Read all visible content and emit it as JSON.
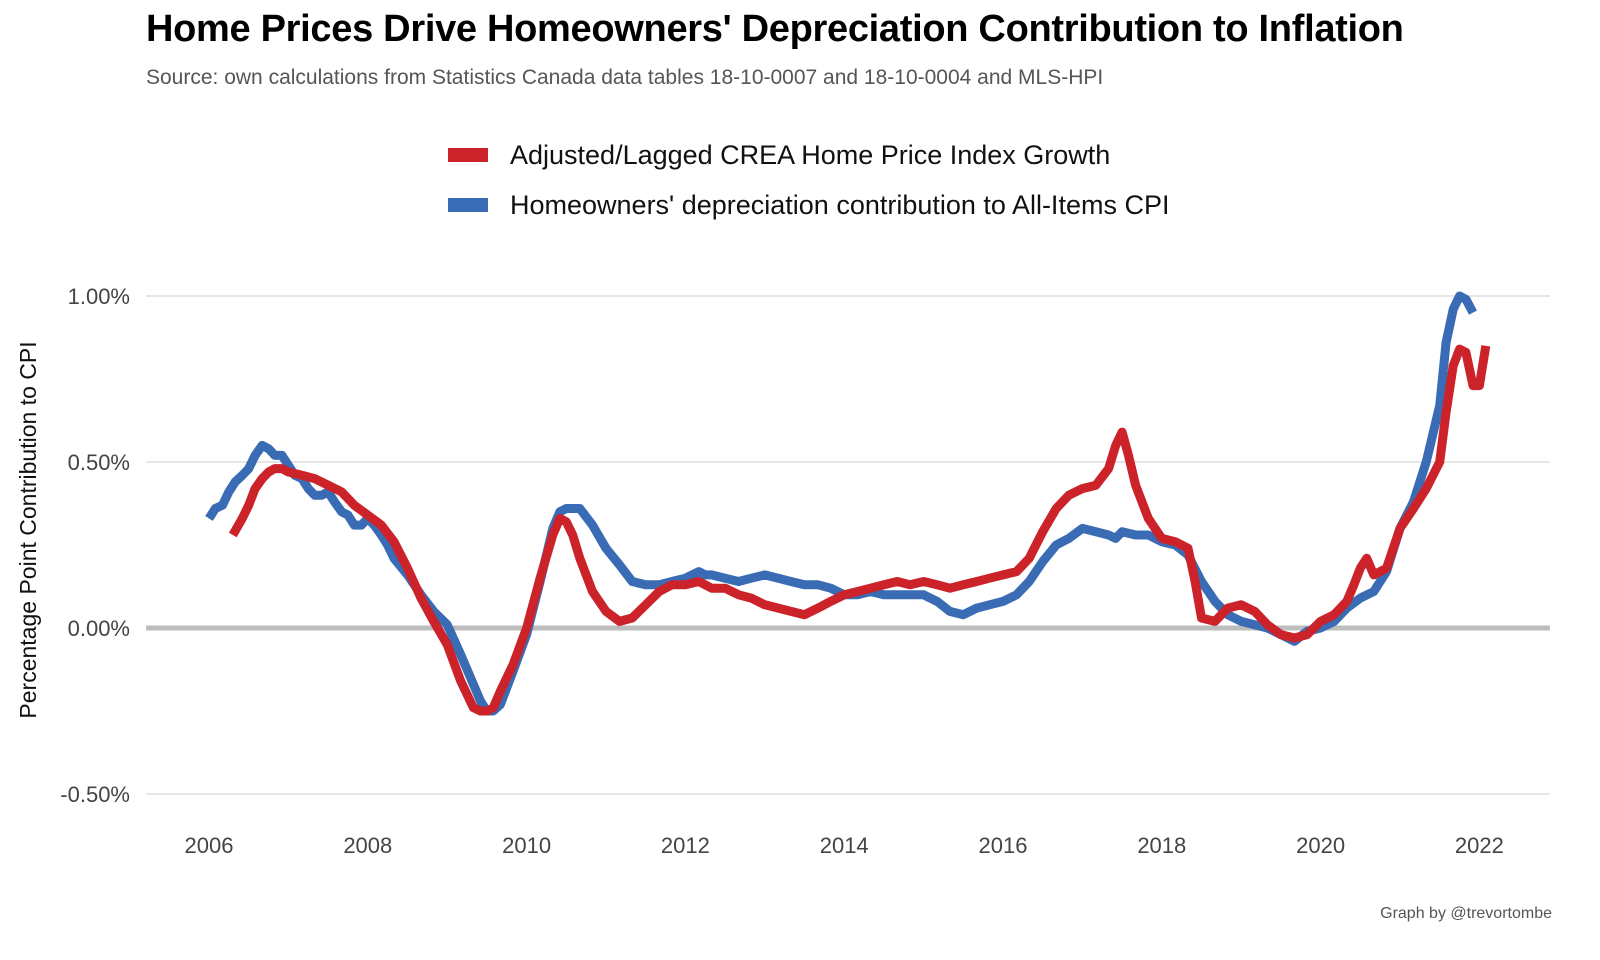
{
  "chart_data": {
    "type": "line",
    "title": "Home Prices Drive Homeowners' Depreciation Contribution to Inflation",
    "subtitle": "Source: own calculations from Statistics Canada data tables 18-10-0007 and 18-10-0004 and MLS-HPI",
    "xlabel": "",
    "ylabel": "Percentage Point Contribution to CPI",
    "caption": "Graph by @trevortombe",
    "xlim": [
      2005.5,
      2022.8
    ],
    "ylim": [
      -0.55,
      1.12
    ],
    "x_ticks": [
      2006,
      2008,
      2010,
      2012,
      2014,
      2016,
      2018,
      2020,
      2022
    ],
    "x_tick_labels": [
      "2006",
      "2008",
      "2010",
      "2012",
      "2014",
      "2016",
      "2018",
      "2020",
      "2022"
    ],
    "y_ticks": [
      -0.5,
      0.0,
      0.5,
      1.0
    ],
    "y_tick_labels": [
      "-0.50%",
      "0.00%",
      "0.50%",
      "1.00%"
    ],
    "grid": true,
    "zero_line": true,
    "legend_position": "top",
    "series": [
      {
        "name": "Homeowners' depreciation contribution to All-Items CPI",
        "color": "#3a6bb5",
        "x": [
          2006.0,
          2006.08,
          2006.17,
          2006.25,
          2006.33,
          2006.42,
          2006.5,
          2006.58,
          2006.67,
          2006.75,
          2006.83,
          2006.92,
          2007.0,
          2007.08,
          2007.17,
          2007.25,
          2007.33,
          2007.42,
          2007.5,
          2007.58,
          2007.67,
          2007.75,
          2007.83,
          2007.92,
          2008.0,
          2008.08,
          2008.17,
          2008.25,
          2008.33,
          2008.5,
          2008.67,
          2008.83,
          2009.0,
          2009.17,
          2009.33,
          2009.42,
          2009.5,
          2009.58,
          2009.67,
          2009.83,
          2010.0,
          2010.17,
          2010.33,
          2010.42,
          2010.5,
          2010.67,
          2010.83,
          2011.0,
          2011.17,
          2011.33,
          2011.5,
          2011.67,
          2011.83,
          2012.0,
          2012.17,
          2012.25,
          2012.33,
          2012.5,
          2012.67,
          2012.83,
          2013.0,
          2013.17,
          2013.33,
          2013.5,
          2013.67,
          2013.83,
          2014.0,
          2014.17,
          2014.33,
          2014.5,
          2014.67,
          2014.83,
          2015.0,
          2015.17,
          2015.33,
          2015.5,
          2015.67,
          2015.83,
          2016.0,
          2016.17,
          2016.33,
          2016.5,
          2016.67,
          2016.83,
          2017.0,
          2017.17,
          2017.33,
          2017.42,
          2017.5,
          2017.67,
          2017.83,
          2018.0,
          2018.17,
          2018.33,
          2018.5,
          2018.67,
          2018.83,
          2019.0,
          2019.17,
          2019.33,
          2019.5,
          2019.67,
          2019.83,
          2020.0,
          2020.17,
          2020.33,
          2020.5,
          2020.67,
          2020.83,
          2021.0,
          2021.17,
          2021.33,
          2021.5,
          2021.58,
          2021.67,
          2021.75,
          2021.83,
          2021.92
        ],
        "values": [
          0.33,
          0.36,
          0.37,
          0.41,
          0.44,
          0.46,
          0.48,
          0.52,
          0.55,
          0.54,
          0.52,
          0.52,
          0.49,
          0.46,
          0.45,
          0.42,
          0.4,
          0.4,
          0.41,
          0.38,
          0.35,
          0.34,
          0.31,
          0.31,
          0.33,
          0.31,
          0.28,
          0.25,
          0.21,
          0.16,
          0.1,
          0.05,
          0.01,
          -0.08,
          -0.17,
          -0.22,
          -0.25,
          -0.25,
          -0.23,
          -0.13,
          -0.02,
          0.14,
          0.3,
          0.35,
          0.36,
          0.36,
          0.31,
          0.24,
          0.19,
          0.14,
          0.13,
          0.13,
          0.14,
          0.15,
          0.17,
          0.16,
          0.16,
          0.15,
          0.14,
          0.15,
          0.16,
          0.15,
          0.14,
          0.13,
          0.13,
          0.12,
          0.1,
          0.1,
          0.11,
          0.1,
          0.1,
          0.1,
          0.1,
          0.08,
          0.05,
          0.04,
          0.06,
          0.07,
          0.08,
          0.1,
          0.14,
          0.2,
          0.25,
          0.27,
          0.3,
          0.29,
          0.28,
          0.27,
          0.29,
          0.28,
          0.28,
          0.26,
          0.25,
          0.22,
          0.14,
          0.08,
          0.04,
          0.02,
          0.01,
          0.0,
          -0.02,
          -0.04,
          -0.01,
          0.0,
          0.02,
          0.06,
          0.09,
          0.11,
          0.17,
          0.3,
          0.38,
          0.5,
          0.67,
          0.86,
          0.96,
          1.0,
          0.99,
          0.95
        ]
      },
      {
        "name": "Adjusted/Lagged CREA Home Price Index Growth",
        "color": "#cc2229",
        "x": [
          2006.3,
          2006.42,
          2006.5,
          2006.58,
          2006.67,
          2006.75,
          2006.83,
          2006.92,
          2007.0,
          2007.17,
          2007.33,
          2007.5,
          2007.67,
          2007.83,
          2008.0,
          2008.17,
          2008.33,
          2008.5,
          2008.67,
          2008.83,
          2009.0,
          2009.17,
          2009.33,
          2009.42,
          2009.5,
          2009.58,
          2009.67,
          2009.83,
          2010.0,
          2010.17,
          2010.33,
          2010.42,
          2010.5,
          2010.58,
          2010.67,
          2010.83,
          2011.0,
          2011.17,
          2011.33,
          2011.5,
          2011.67,
          2011.83,
          2012.0,
          2012.17,
          2012.33,
          2012.5,
          2012.67,
          2012.83,
          2013.0,
          2013.17,
          2013.33,
          2013.5,
          2013.67,
          2013.83,
          2014.0,
          2014.17,
          2014.33,
          2014.5,
          2014.67,
          2014.83,
          2015.0,
          2015.17,
          2015.33,
          2015.5,
          2015.67,
          2015.83,
          2016.0,
          2016.17,
          2016.33,
          2016.5,
          2016.67,
          2016.83,
          2017.0,
          2017.17,
          2017.33,
          2017.42,
          2017.5,
          2017.58,
          2017.67,
          2017.83,
          2018.0,
          2018.17,
          2018.33,
          2018.42,
          2018.5,
          2018.67,
          2018.83,
          2019.0,
          2019.17,
          2019.33,
          2019.5,
          2019.67,
          2019.83,
          2020.0,
          2020.17,
          2020.33,
          2020.42,
          2020.5,
          2020.58,
          2020.67,
          2020.83,
          2021.0,
          2021.17,
          2021.33,
          2021.5,
          2021.58,
          2021.67,
          2021.75,
          2021.83,
          2021.92,
          2022.0,
          2022.08
        ],
        "values": [
          0.28,
          0.33,
          0.37,
          0.42,
          0.45,
          0.47,
          0.48,
          0.48,
          0.47,
          0.46,
          0.45,
          0.43,
          0.41,
          0.37,
          0.34,
          0.31,
          0.26,
          0.18,
          0.09,
          0.02,
          -0.05,
          -0.16,
          -0.24,
          -0.25,
          -0.25,
          -0.24,
          -0.19,
          -0.11,
          0.0,
          0.15,
          0.28,
          0.33,
          0.32,
          0.28,
          0.21,
          0.11,
          0.05,
          0.02,
          0.03,
          0.07,
          0.11,
          0.13,
          0.13,
          0.14,
          0.12,
          0.12,
          0.1,
          0.09,
          0.07,
          0.06,
          0.05,
          0.04,
          0.06,
          0.08,
          0.1,
          0.11,
          0.12,
          0.13,
          0.14,
          0.13,
          0.14,
          0.13,
          0.12,
          0.13,
          0.14,
          0.15,
          0.16,
          0.17,
          0.21,
          0.29,
          0.36,
          0.4,
          0.42,
          0.43,
          0.48,
          0.55,
          0.59,
          0.52,
          0.43,
          0.33,
          0.27,
          0.26,
          0.24,
          0.14,
          0.03,
          0.02,
          0.06,
          0.07,
          0.05,
          0.01,
          -0.02,
          -0.03,
          -0.02,
          0.02,
          0.04,
          0.08,
          0.13,
          0.18,
          0.21,
          0.16,
          0.18,
          0.3,
          0.36,
          0.42,
          0.5,
          0.65,
          0.79,
          0.84,
          0.83,
          0.73,
          0.73,
          0.85
        ]
      }
    ]
  }
}
